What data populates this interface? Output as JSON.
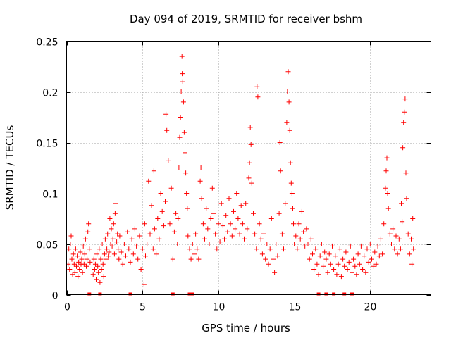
{
  "chart_data": {
    "type": "scatter",
    "title": "Day 094 of 2019, SRMTID for receiver bshm",
    "xlabel": "GPS time / hours",
    "ylabel": "SRMTID / TECUs",
    "xlim": [
      0,
      24
    ],
    "ylim": [
      0,
      0.25
    ],
    "xticks": [
      0,
      5,
      10,
      15,
      20
    ],
    "yticks": [
      0,
      0.05,
      0.1,
      0.15,
      0.2,
      0.25
    ],
    "xtick_labels": [
      "0",
      "5",
      "10",
      "15",
      "20"
    ],
    "ytick_labels": [
      "0",
      "0.05",
      "0.1",
      "0.15",
      "0.2",
      "0.25"
    ],
    "grid": true,
    "marker": "+",
    "color": "#ff0000",
    "series": [
      {
        "name": "SRMTID",
        "points": [
          [
            0.1,
            0.03
          ],
          [
            0.15,
            0.045
          ],
          [
            0.2,
            0.025
          ],
          [
            0.25,
            0.05
          ],
          [
            0.3,
            0.058
          ],
          [
            0.35,
            0.035
          ],
          [
            0.4,
            0.02
          ],
          [
            0.45,
            0.04
          ],
          [
            0.5,
            0.03
          ],
          [
            0.55,
            0.022
          ],
          [
            0.6,
            0.045
          ],
          [
            0.65,
            0.028
          ],
          [
            0.7,
            0.038
          ],
          [
            0.75,
            0.018
          ],
          [
            0.8,
            0.032
          ],
          [
            0.85,
            0.025
          ],
          [
            0.9,
            0.042
          ],
          [
            0.95,
            0.03
          ],
          [
            1.0,
            0.035
          ],
          [
            1.05,
            0.022
          ],
          [
            1.1,
            0.048
          ],
          [
            1.15,
            0.03
          ],
          [
            1.2,
            0.04
          ],
          [
            1.25,
            0.055
          ],
          [
            1.3,
            0.028
          ],
          [
            1.35,
            0.035
          ],
          [
            1.4,
            0.062
          ],
          [
            1.45,
            0.07
          ],
          [
            1.5,
            0.045
          ],
          [
            1.55,
            0.032
          ],
          [
            1.75,
            0.02
          ],
          [
            1.8,
            0.035
          ],
          [
            1.85,
            0.025
          ],
          [
            1.9,
            0.03
          ],
          [
            1.95,
            0.015
          ],
          [
            2.0,
            0.04
          ],
          [
            2.05,
            0.028
          ],
          [
            2.1,
            0.022
          ],
          [
            2.15,
            0.045
          ],
          [
            2.2,
            0.012
          ],
          [
            2.25,
            0.035
          ],
          [
            2.3,
            0.025
          ],
          [
            2.35,
            0.05
          ],
          [
            2.4,
            0.03
          ],
          [
            2.45,
            0.018
          ],
          [
            2.5,
            0.04
          ],
          [
            2.55,
            0.055
          ],
          [
            2.6,
            0.035
          ],
          [
            2.65,
            0.045
          ],
          [
            2.7,
            0.06
          ],
          [
            2.75,
            0.038
          ],
          [
            2.8,
            0.042
          ],
          [
            2.85,
            0.075
          ],
          [
            2.9,
            0.05
          ],
          [
            2.95,
            0.065
          ],
          [
            3.0,
            0.048
          ],
          [
            3.05,
            0.055
          ],
          [
            3.1,
            0.07
          ],
          [
            3.15,
            0.04
          ],
          [
            3.2,
            0.08
          ],
          [
            3.25,
            0.09
          ],
          [
            3.3,
            0.052
          ],
          [
            3.35,
            0.06
          ],
          [
            3.4,
            0.045
          ],
          [
            3.45,
            0.035
          ],
          [
            3.5,
            0.058
          ],
          [
            3.6,
            0.042
          ],
          [
            3.7,
            0.03
          ],
          [
            3.8,
            0.05
          ],
          [
            3.9,
            0.038
          ],
          [
            4.0,
            0.062
          ],
          [
            4.1,
            0.045
          ],
          [
            4.2,
            0.032
          ],
          [
            4.3,
            0.055
          ],
          [
            4.4,
            0.04
          ],
          [
            4.5,
            0.065
          ],
          [
            4.6,
            0.048
          ],
          [
            4.7,
            0.035
          ],
          [
            4.8,
            0.058
          ],
          [
            4.9,
            0.025
          ],
          [
            5.0,
            0.045
          ],
          [
            5.1,
            0.01
          ],
          [
            5.15,
            0.07
          ],
          [
            5.2,
            0.038
          ],
          [
            5.3,
            0.05
          ],
          [
            5.4,
            0.112
          ],
          [
            5.5,
            0.06
          ],
          [
            5.6,
            0.088
          ],
          [
            5.7,
            0.045
          ],
          [
            5.75,
            0.122
          ],
          [
            5.8,
            0.065
          ],
          [
            5.9,
            0.04
          ],
          [
            6.0,
            0.075
          ],
          [
            6.1,
            0.055
          ],
          [
            6.2,
            0.1
          ],
          [
            6.3,
            0.082
          ],
          [
            6.4,
            0.068
          ],
          [
            6.5,
            0.092
          ],
          [
            6.55,
            0.178
          ],
          [
            6.6,
            0.162
          ],
          [
            6.7,
            0.132
          ],
          [
            6.8,
            0.07
          ],
          [
            6.9,
            0.105
          ],
          [
            7.0,
            0.035
          ],
          [
            7.1,
            0.062
          ],
          [
            7.2,
            0.08
          ],
          [
            7.3,
            0.05
          ],
          [
            7.35,
            0.075
          ],
          [
            7.4,
            0.125
          ],
          [
            7.45,
            0.155
          ],
          [
            7.5,
            0.175
          ],
          [
            7.55,
            0.2
          ],
          [
            7.6,
            0.235
          ],
          [
            7.62,
            0.218
          ],
          [
            7.65,
            0.21
          ],
          [
            7.7,
            0.19
          ],
          [
            7.75,
            0.16
          ],
          [
            7.8,
            0.14
          ],
          [
            7.85,
            0.12
          ],
          [
            7.9,
            0.1
          ],
          [
            7.95,
            0.085
          ],
          [
            8.0,
            0.058
          ],
          [
            8.1,
            0.045
          ],
          [
            8.2,
            0.035
          ],
          [
            8.3,
            0.05
          ],
          [
            8.4,
            0.04
          ],
          [
            8.5,
            0.06
          ],
          [
            8.6,
            0.045
          ],
          [
            8.7,
            0.035
          ],
          [
            8.8,
            0.112
          ],
          [
            8.85,
            0.125
          ],
          [
            8.9,
            0.095
          ],
          [
            9.0,
            0.07
          ],
          [
            9.1,
            0.055
          ],
          [
            9.2,
            0.085
          ],
          [
            9.3,
            0.065
          ],
          [
            9.4,
            0.05
          ],
          [
            9.5,
            0.075
          ],
          [
            9.6,
            0.105
          ],
          [
            9.7,
            0.08
          ],
          [
            9.8,
            0.06
          ],
          [
            9.9,
            0.045
          ],
          [
            10.0,
            0.07
          ],
          [
            10.1,
            0.052
          ],
          [
            10.2,
            0.09
          ],
          [
            10.3,
            0.068
          ],
          [
            10.4,
            0.055
          ],
          [
            10.5,
            0.078
          ],
          [
            10.6,
            0.062
          ],
          [
            10.7,
            0.095
          ],
          [
            10.8,
            0.07
          ],
          [
            10.9,
            0.058
          ],
          [
            11.0,
            0.082
          ],
          [
            11.1,
            0.065
          ],
          [
            11.2,
            0.1
          ],
          [
            11.3,
            0.075
          ],
          [
            11.4,
            0.06
          ],
          [
            11.5,
            0.088
          ],
          [
            11.6,
            0.07
          ],
          [
            11.7,
            0.055
          ],
          [
            11.8,
            0.09
          ],
          [
            11.9,
            0.065
          ],
          [
            12.0,
            0.115
          ],
          [
            12.05,
            0.13
          ],
          [
            12.1,
            0.165
          ],
          [
            12.15,
            0.148
          ],
          [
            12.2,
            0.11
          ],
          [
            12.3,
            0.08
          ],
          [
            12.4,
            0.06
          ],
          [
            12.5,
            0.045
          ],
          [
            12.55,
            0.205
          ],
          [
            12.6,
            0.195
          ],
          [
            12.7,
            0.07
          ],
          [
            12.8,
            0.055
          ],
          [
            12.9,
            0.04
          ],
          [
            13.0,
            0.06
          ],
          [
            13.1,
            0.035
          ],
          [
            13.2,
            0.05
          ],
          [
            13.3,
            0.03
          ],
          [
            13.4,
            0.045
          ],
          [
            13.5,
            0.075
          ],
          [
            13.6,
            0.035
          ],
          [
            13.7,
            0.022
          ],
          [
            13.8,
            0.05
          ],
          [
            13.9,
            0.038
          ],
          [
            14.0,
            0.08
          ],
          [
            14.05,
            0.15
          ],
          [
            14.1,
            0.122
          ],
          [
            14.2,
            0.06
          ],
          [
            14.3,
            0.045
          ],
          [
            14.4,
            0.09
          ],
          [
            14.5,
            0.17
          ],
          [
            14.55,
            0.2
          ],
          [
            14.6,
            0.22
          ],
          [
            14.65,
            0.19
          ],
          [
            14.7,
            0.162
          ],
          [
            14.75,
            0.13
          ],
          [
            14.8,
            0.11
          ],
          [
            14.85,
            0.1
          ],
          [
            14.9,
            0.085
          ],
          [
            14.95,
            0.07
          ],
          [
            15.0,
            0.05
          ],
          [
            15.1,
            0.058
          ],
          [
            15.2,
            0.045
          ],
          [
            15.3,
            0.07
          ],
          [
            15.4,
            0.055
          ],
          [
            15.5,
            0.082
          ],
          [
            15.6,
            0.062
          ],
          [
            15.7,
            0.048
          ],
          [
            15.8,
            0.065
          ],
          [
            15.9,
            0.05
          ],
          [
            16.0,
            0.035
          ],
          [
            16.1,
            0.055
          ],
          [
            16.2,
            0.04
          ],
          [
            16.3,
            0.025
          ],
          [
            16.4,
            0.045
          ],
          [
            16.5,
            0.03
          ],
          [
            16.6,
            0.02
          ],
          [
            16.7,
            0.038
          ],
          [
            16.8,
            0.05
          ],
          [
            16.9,
            0.028
          ],
          [
            17.0,
            0.042
          ],
          [
            17.1,
            0.035
          ],
          [
            17.2,
            0.022
          ],
          [
            17.3,
            0.04
          ],
          [
            17.4,
            0.03
          ],
          [
            17.5,
            0.048
          ],
          [
            17.6,
            0.025
          ],
          [
            17.7,
            0.038
          ],
          [
            17.8,
            0.02
          ],
          [
            17.9,
            0.03
          ],
          [
            18.0,
            0.045
          ],
          [
            18.1,
            0.018
          ],
          [
            18.2,
            0.035
          ],
          [
            18.3,
            0.028
          ],
          [
            18.4,
            0.042
          ],
          [
            18.5,
            0.025
          ],
          [
            18.6,
            0.032
          ],
          [
            18.7,
            0.048
          ],
          [
            18.8,
            0.022
          ],
          [
            18.9,
            0.035
          ],
          [
            19.0,
            0.028
          ],
          [
            19.1,
            0.02
          ],
          [
            19.2,
            0.04
          ],
          [
            19.3,
            0.03
          ],
          [
            19.4,
            0.048
          ],
          [
            19.5,
            0.025
          ],
          [
            19.6,
            0.038
          ],
          [
            19.7,
            0.022
          ],
          [
            19.8,
            0.045
          ],
          [
            19.9,
            0.032
          ],
          [
            20.0,
            0.05
          ],
          [
            20.1,
            0.035
          ],
          [
            20.2,
            0.028
          ],
          [
            20.3,
            0.042
          ],
          [
            20.4,
            0.03
          ],
          [
            20.5,
            0.048
          ],
          [
            20.6,
            0.038
          ],
          [
            20.7,
            0.055
          ],
          [
            20.8,
            0.04
          ],
          [
            20.9,
            0.07
          ],
          [
            21.0,
            0.105
          ],
          [
            21.05,
            0.122
          ],
          [
            21.1,
            0.135
          ],
          [
            21.15,
            0.1
          ],
          [
            21.2,
            0.085
          ],
          [
            21.3,
            0.06
          ],
          [
            21.4,
            0.05
          ],
          [
            21.5,
            0.065
          ],
          [
            21.6,
            0.045
          ],
          [
            21.7,
            0.058
          ],
          [
            21.8,
            0.04
          ],
          [
            21.9,
            0.055
          ],
          [
            22.0,
            0.045
          ],
          [
            22.05,
            0.09
          ],
          [
            22.1,
            0.072
          ],
          [
            22.15,
            0.145
          ],
          [
            22.2,
            0.17
          ],
          [
            22.25,
            0.18
          ],
          [
            22.3,
            0.193
          ],
          [
            22.35,
            0.12
          ],
          [
            22.4,
            0.095
          ],
          [
            22.5,
            0.06
          ],
          [
            22.6,
            0.04
          ],
          [
            22.7,
            0.055
          ],
          [
            22.75,
            0.03
          ],
          [
            22.8,
            0.075
          ],
          [
            22.85,
            0.045
          ]
        ],
        "zero_markers": [
          1.5,
          2.2,
          4.2,
          7.0,
          8.1,
          8.3,
          16.6,
          17.1,
          17.6,
          18.3,
          18.8
        ]
      }
    ]
  }
}
